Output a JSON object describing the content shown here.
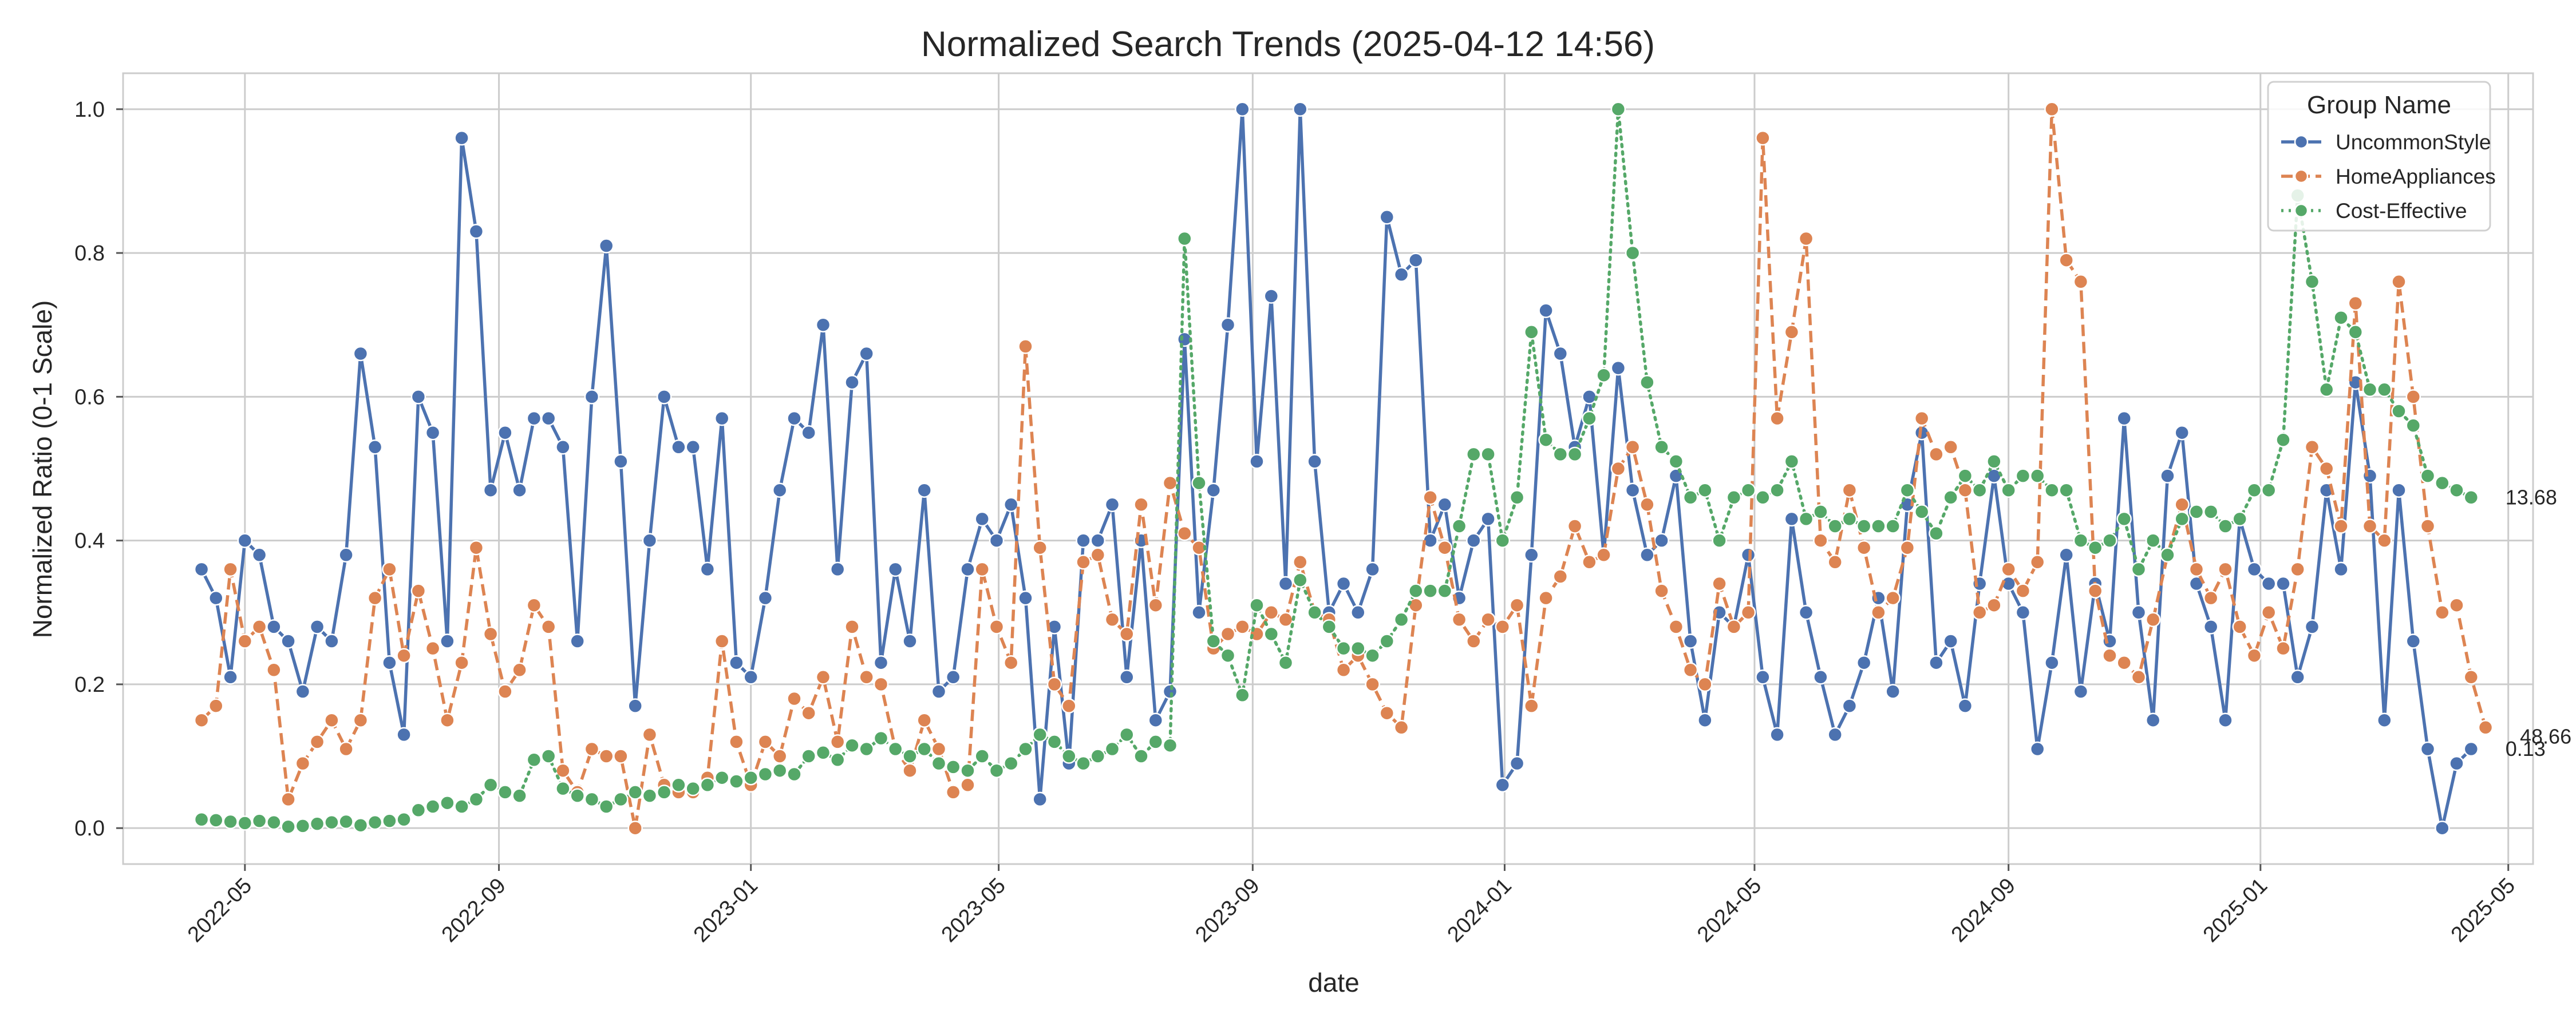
{
  "chart_data": {
    "type": "line",
    "title": "Normalized Search Trends (2025-04-12 14:56)",
    "xlabel": "date",
    "ylabel": "Normalized Ratio (0-1 Scale)",
    "xlim": [
      "2022-03-03",
      "2025-05-13"
    ],
    "ylim": [
      -0.05,
      1.05
    ],
    "grid": true,
    "legend_position": "top-right",
    "legend_title": "Group Name",
    "x_ticks": [
      "2022-05",
      "2022-09",
      "2023-01",
      "2023-05",
      "2023-09",
      "2024-01",
      "2024-05",
      "2024-09",
      "2025-01",
      "2025-05"
    ],
    "y_ticks": [
      "0.0",
      "0.2",
      "0.4",
      "0.6",
      "0.8",
      "1.0"
    ],
    "x_start": "2022-04-10",
    "x_step_days": 7,
    "series": [
      {
        "name": "UncommonStyle",
        "color": "#4c72b0",
        "dash": "solid",
        "end_label": "0.13",
        "values": [
          0.36,
          0.32,
          0.21,
          0.4,
          0.38,
          0.28,
          0.26,
          0.19,
          0.28,
          0.26,
          0.38,
          0.66,
          0.53,
          0.23,
          0.13,
          0.6,
          0.55,
          0.26,
          0.96,
          0.83,
          0.47,
          0.55,
          0.47,
          0.57,
          0.57,
          0.53,
          0.26,
          0.6,
          0.81,
          0.51,
          0.17,
          0.4,
          0.6,
          0.53,
          0.53,
          0.36,
          0.57,
          0.23,
          0.21,
          0.32,
          0.47,
          0.57,
          0.55,
          0.7,
          0.36,
          0.62,
          0.66,
          0.23,
          0.36,
          0.26,
          0.47,
          0.19,
          0.21,
          0.36,
          0.43,
          0.4,
          0.45,
          0.32,
          0.04,
          0.28,
          0.09,
          0.4,
          0.4,
          0.45,
          0.21,
          0.4,
          0.15,
          0.19,
          0.68,
          0.3,
          0.47,
          0.7,
          1.0,
          0.51,
          0.74,
          0.34,
          1.0,
          0.51,
          0.3,
          0.34,
          0.3,
          0.36,
          0.85,
          0.77,
          0.79,
          0.4,
          0.45,
          0.32,
          0.4,
          0.43,
          0.06,
          0.09,
          0.38,
          0.72,
          0.66,
          0.53,
          0.6,
          0.38,
          0.64,
          0.47,
          0.38,
          0.4,
          0.49,
          0.26,
          0.15,
          0.3,
          0.28,
          0.38,
          0.21,
          0.13,
          0.43,
          0.3,
          0.21,
          0.13,
          0.17,
          0.23,
          0.32,
          0.19,
          0.45,
          0.55,
          0.23,
          0.26,
          0.17,
          0.34,
          0.49,
          0.34,
          0.3,
          0.11,
          0.23,
          0.38,
          0.19,
          0.34,
          0.26,
          0.57,
          0.3,
          0.15,
          0.49,
          0.55,
          0.34,
          0.28,
          0.15,
          0.43,
          0.36,
          0.34,
          0.34,
          0.21,
          0.28,
          0.47,
          0.36,
          0.62,
          0.49,
          0.15,
          0.47,
          0.26,
          0.11,
          0.0,
          0.09,
          0.11
        ]
      },
      {
        "name": "HomeAppliances",
        "color": "#dd8452",
        "dash": "dashed",
        "end_label": "48.66",
        "values": [
          0.15,
          0.17,
          0.36,
          0.26,
          0.28,
          0.22,
          0.04,
          0.09,
          0.12,
          0.15,
          0.11,
          0.15,
          0.32,
          0.36,
          0.24,
          0.33,
          0.25,
          0.15,
          0.23,
          0.39,
          0.27,
          0.19,
          0.22,
          0.31,
          0.28,
          0.08,
          0.05,
          0.11,
          0.1,
          0.1,
          0.0,
          0.13,
          0.06,
          0.05,
          0.05,
          0.07,
          0.26,
          0.12,
          0.06,
          0.12,
          0.1,
          0.18,
          0.16,
          0.21,
          0.12,
          0.28,
          0.21,
          0.2,
          0.11,
          0.08,
          0.15,
          0.11,
          0.05,
          0.06,
          0.36,
          0.28,
          0.23,
          0.67,
          0.39,
          0.2,
          0.17,
          0.37,
          0.38,
          0.29,
          0.27,
          0.45,
          0.31,
          0.48,
          0.41,
          0.39,
          0.25,
          0.27,
          0.28,
          0.27,
          0.3,
          0.29,
          0.37,
          0.3,
          0.29,
          0.22,
          0.24,
          0.2,
          0.16,
          0.14,
          0.31,
          0.46,
          0.39,
          0.29,
          0.26,
          0.29,
          0.28,
          0.31,
          0.17,
          0.32,
          0.35,
          0.42,
          0.37,
          0.38,
          0.5,
          0.53,
          0.45,
          0.33,
          0.28,
          0.22,
          0.2,
          0.34,
          0.28,
          0.3,
          0.96,
          0.57,
          0.69,
          0.82,
          0.4,
          0.37,
          0.47,
          0.39,
          0.3,
          0.32,
          0.39,
          0.57,
          0.52,
          0.53,
          0.47,
          0.3,
          0.31,
          0.36,
          0.33,
          0.37,
          1.0,
          0.79,
          0.76,
          0.33,
          0.24,
          0.23,
          0.21,
          0.29,
          0.38,
          0.45,
          0.36,
          0.32,
          0.36,
          0.28,
          0.24,
          0.3,
          0.25,
          0.36,
          0.53,
          0.5,
          0.42,
          0.73,
          0.42,
          0.4,
          0.76,
          0.6,
          0.42,
          0.3,
          0.31,
          0.21,
          0.14
        ]
      },
      {
        "name": "Cost-Effective",
        "color": "#55a868",
        "dash": "dotted",
        "end_label": "13.68",
        "values": [
          0.012,
          0.011,
          0.009,
          0.007,
          0.01,
          0.008,
          0.002,
          0.003,
          0.006,
          0.008,
          0.009,
          0.004,
          0.008,
          0.01,
          0.012,
          0.025,
          0.03,
          0.035,
          0.03,
          0.04,
          0.06,
          0.05,
          0.045,
          0.095,
          0.1,
          0.055,
          0.045,
          0.04,
          0.03,
          0.04,
          0.05,
          0.045,
          0.05,
          0.06,
          0.055,
          0.06,
          0.07,
          0.065,
          0.07,
          0.075,
          0.08,
          0.075,
          0.1,
          0.105,
          0.095,
          0.115,
          0.11,
          0.125,
          0.11,
          0.1,
          0.11,
          0.09,
          0.085,
          0.08,
          0.1,
          0.08,
          0.09,
          0.11,
          0.13,
          0.12,
          0.1,
          0.09,
          0.1,
          0.11,
          0.13,
          0.1,
          0.12,
          0.115,
          0.82,
          0.48,
          0.26,
          0.24,
          0.185,
          0.31,
          0.27,
          0.23,
          0.345,
          0.3,
          0.28,
          0.25,
          0.25,
          0.24,
          0.26,
          0.29,
          0.33,
          0.33,
          0.33,
          0.42,
          0.52,
          0.52,
          0.4,
          0.46,
          0.69,
          0.54,
          0.52,
          0.52,
          0.57,
          0.63,
          1.0,
          0.8,
          0.62,
          0.53,
          0.51,
          0.46,
          0.47,
          0.4,
          0.46,
          0.47,
          0.46,
          0.47,
          0.51,
          0.43,
          0.44,
          0.42,
          0.43,
          0.42,
          0.42,
          0.42,
          0.47,
          0.44,
          0.41,
          0.46,
          0.49,
          0.47,
          0.51,
          0.47,
          0.49,
          0.49,
          0.47,
          0.47,
          0.4,
          0.39,
          0.4,
          0.43,
          0.36,
          0.4,
          0.38,
          0.43,
          0.44,
          0.44,
          0.42,
          0.43,
          0.47,
          0.47,
          0.54,
          0.88,
          0.76,
          0.61,
          0.71,
          0.69,
          0.61,
          0.61,
          0.58,
          0.56,
          0.49,
          0.48,
          0.47,
          0.46
        ]
      }
    ]
  }
}
